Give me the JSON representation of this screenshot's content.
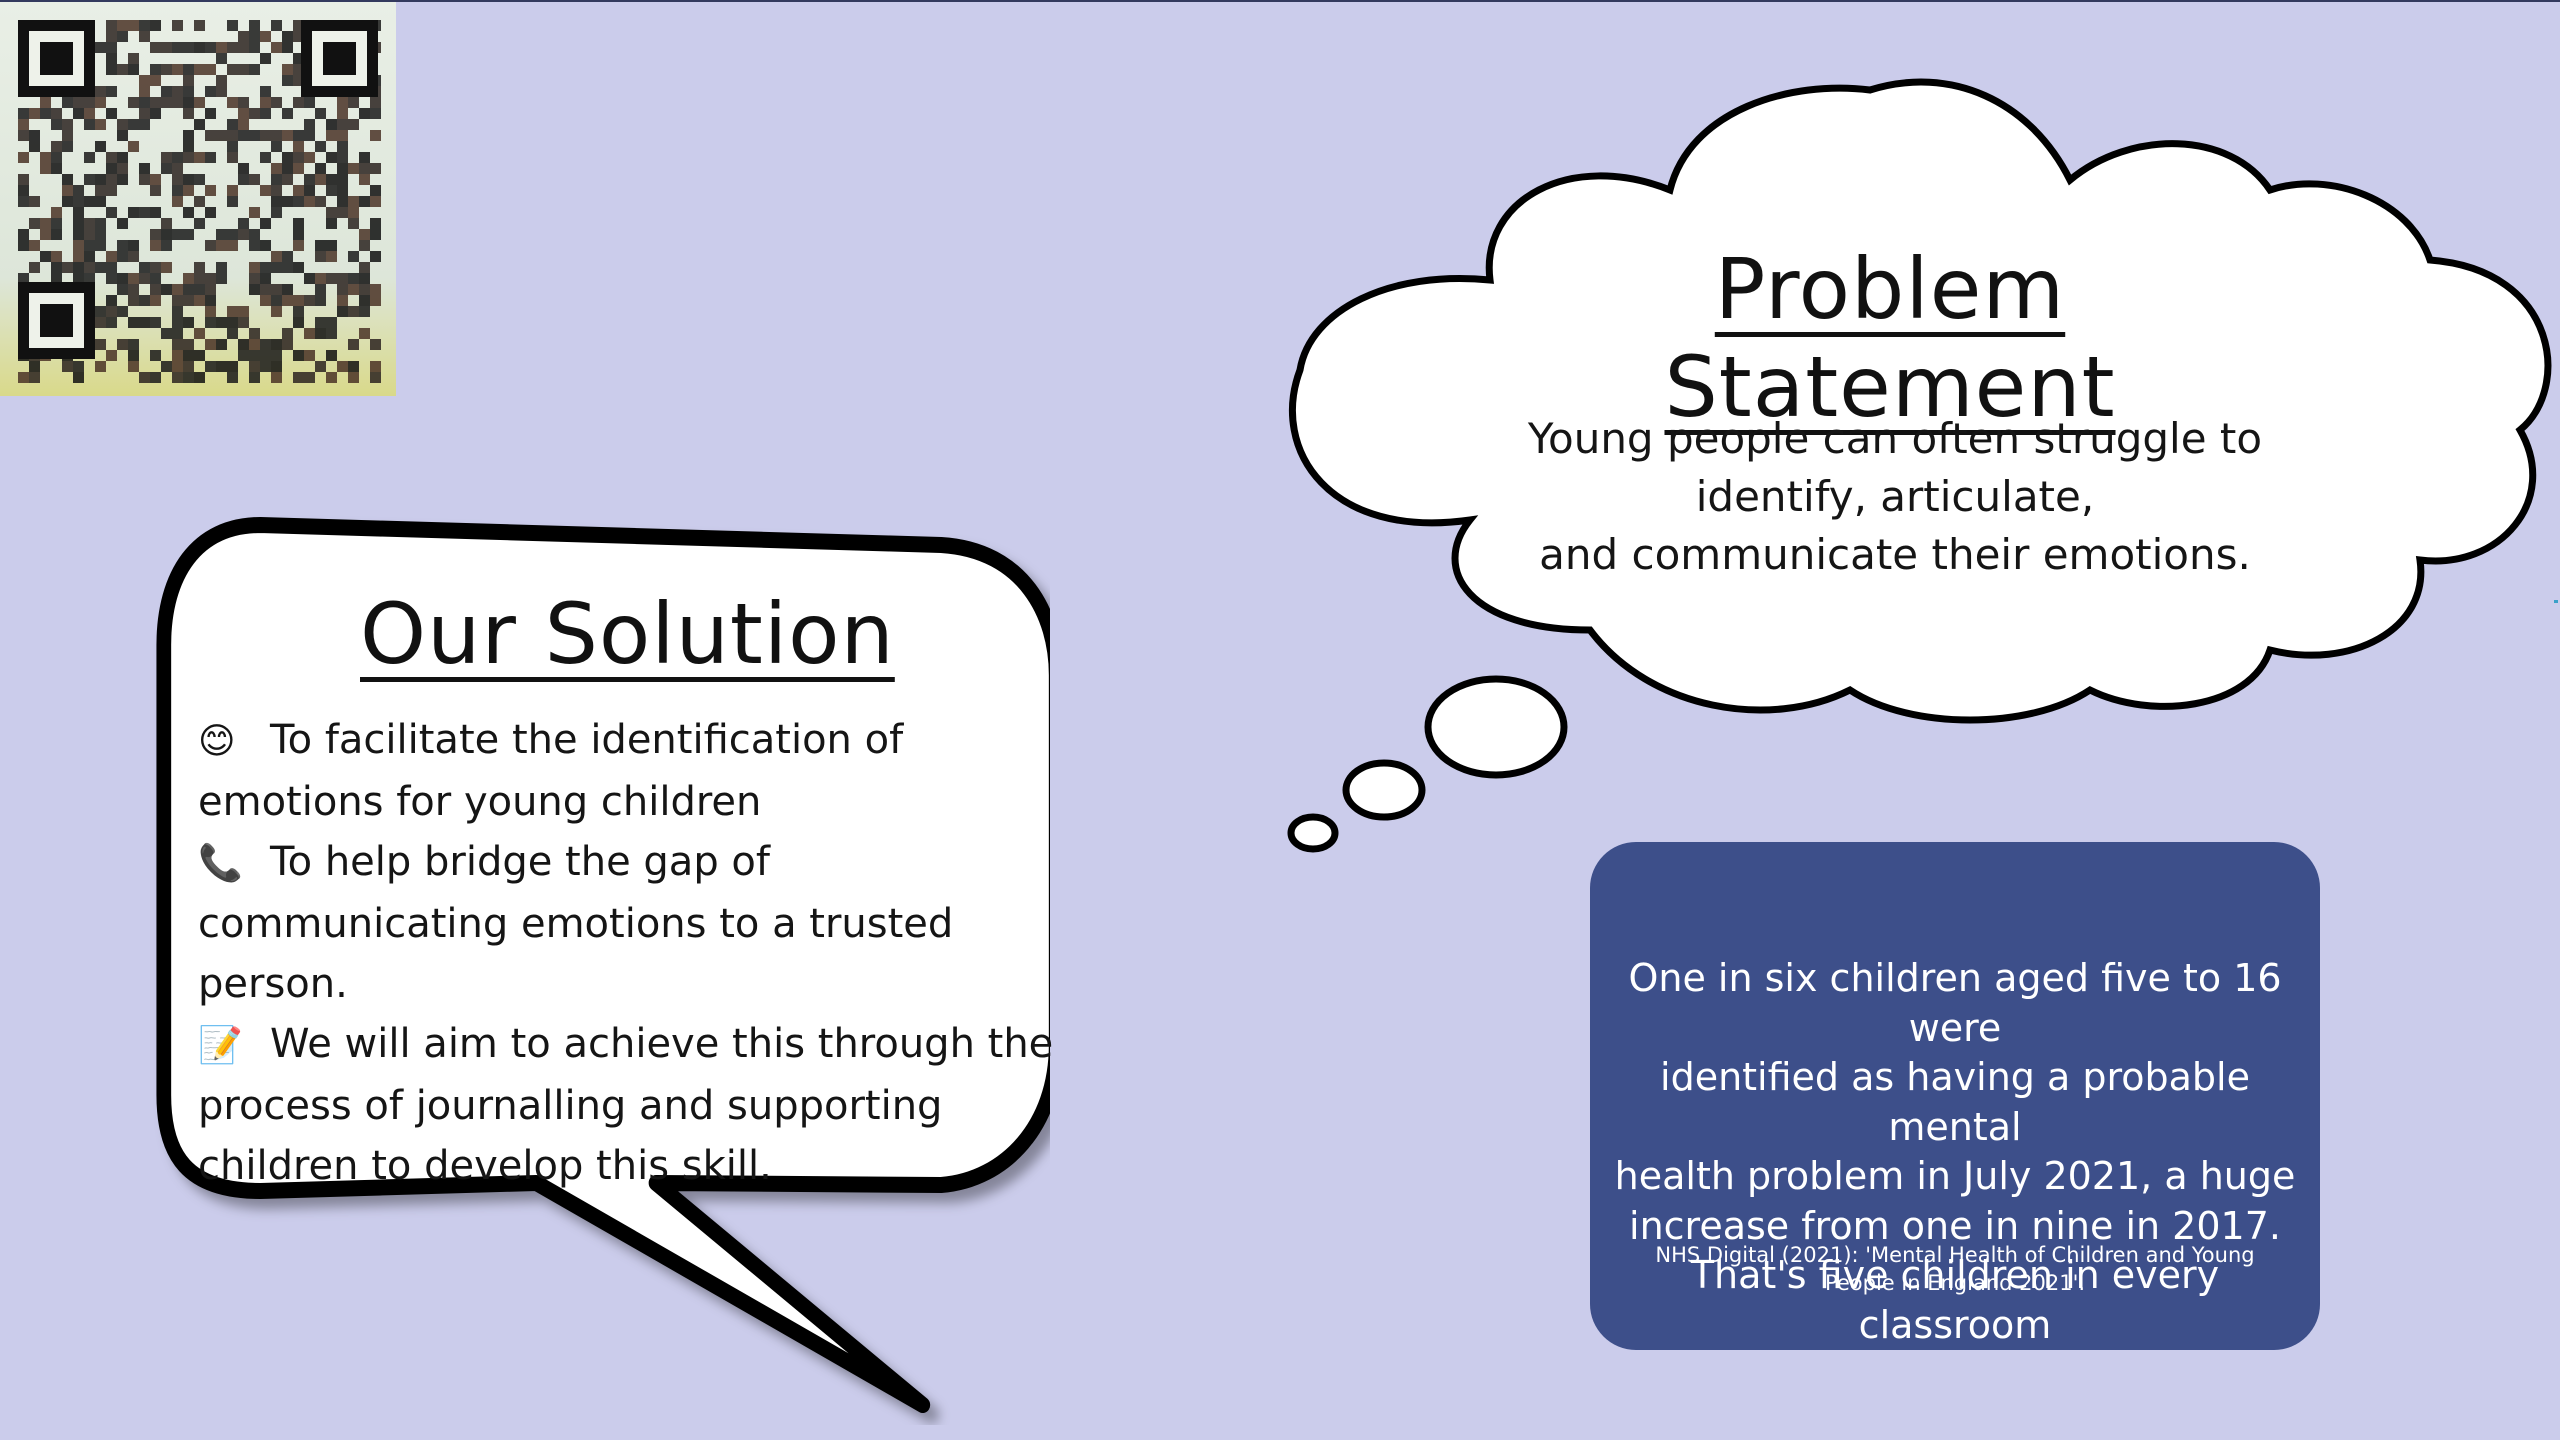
{
  "problem": {
    "title": "Problem Statement",
    "lines": [
      "Young people can often struggle to",
      "identify, articulate,",
      "and communicate their emotions."
    ]
  },
  "solution": {
    "title": "Our Solution",
    "items": [
      {
        "icon": "smiling-face-icon",
        "glyph": "😊",
        "first": "To facilitate the identification of",
        "rest": "emotions  for young children"
      },
      {
        "icon": "telephone-receiver-icon",
        "glyph": "📞",
        "first": "To help bridge the gap of",
        "rest": "communicating emotions to a trusted person."
      },
      {
        "icon": "memo-icon",
        "glyph": "📝",
        "first": "We will aim to achieve this through the",
        "rest": "process of journalling and supporting children to develop this skill."
      }
    ]
  },
  "statistic": {
    "lines": [
      "One in six children aged five to 16 were",
      "identified as having a probable mental",
      "health problem in July 2021, a huge",
      "increase from one in nine in 2017.",
      "That's five children in every classroom"
    ],
    "source_lines": [
      "NHS Digital (2021): 'Mental Health of Children and Young",
      "People in England 2021'."
    ]
  },
  "colors": {
    "background": "#cbcceb",
    "info_box": "#3d4f8a",
    "outline": "#000000"
  }
}
